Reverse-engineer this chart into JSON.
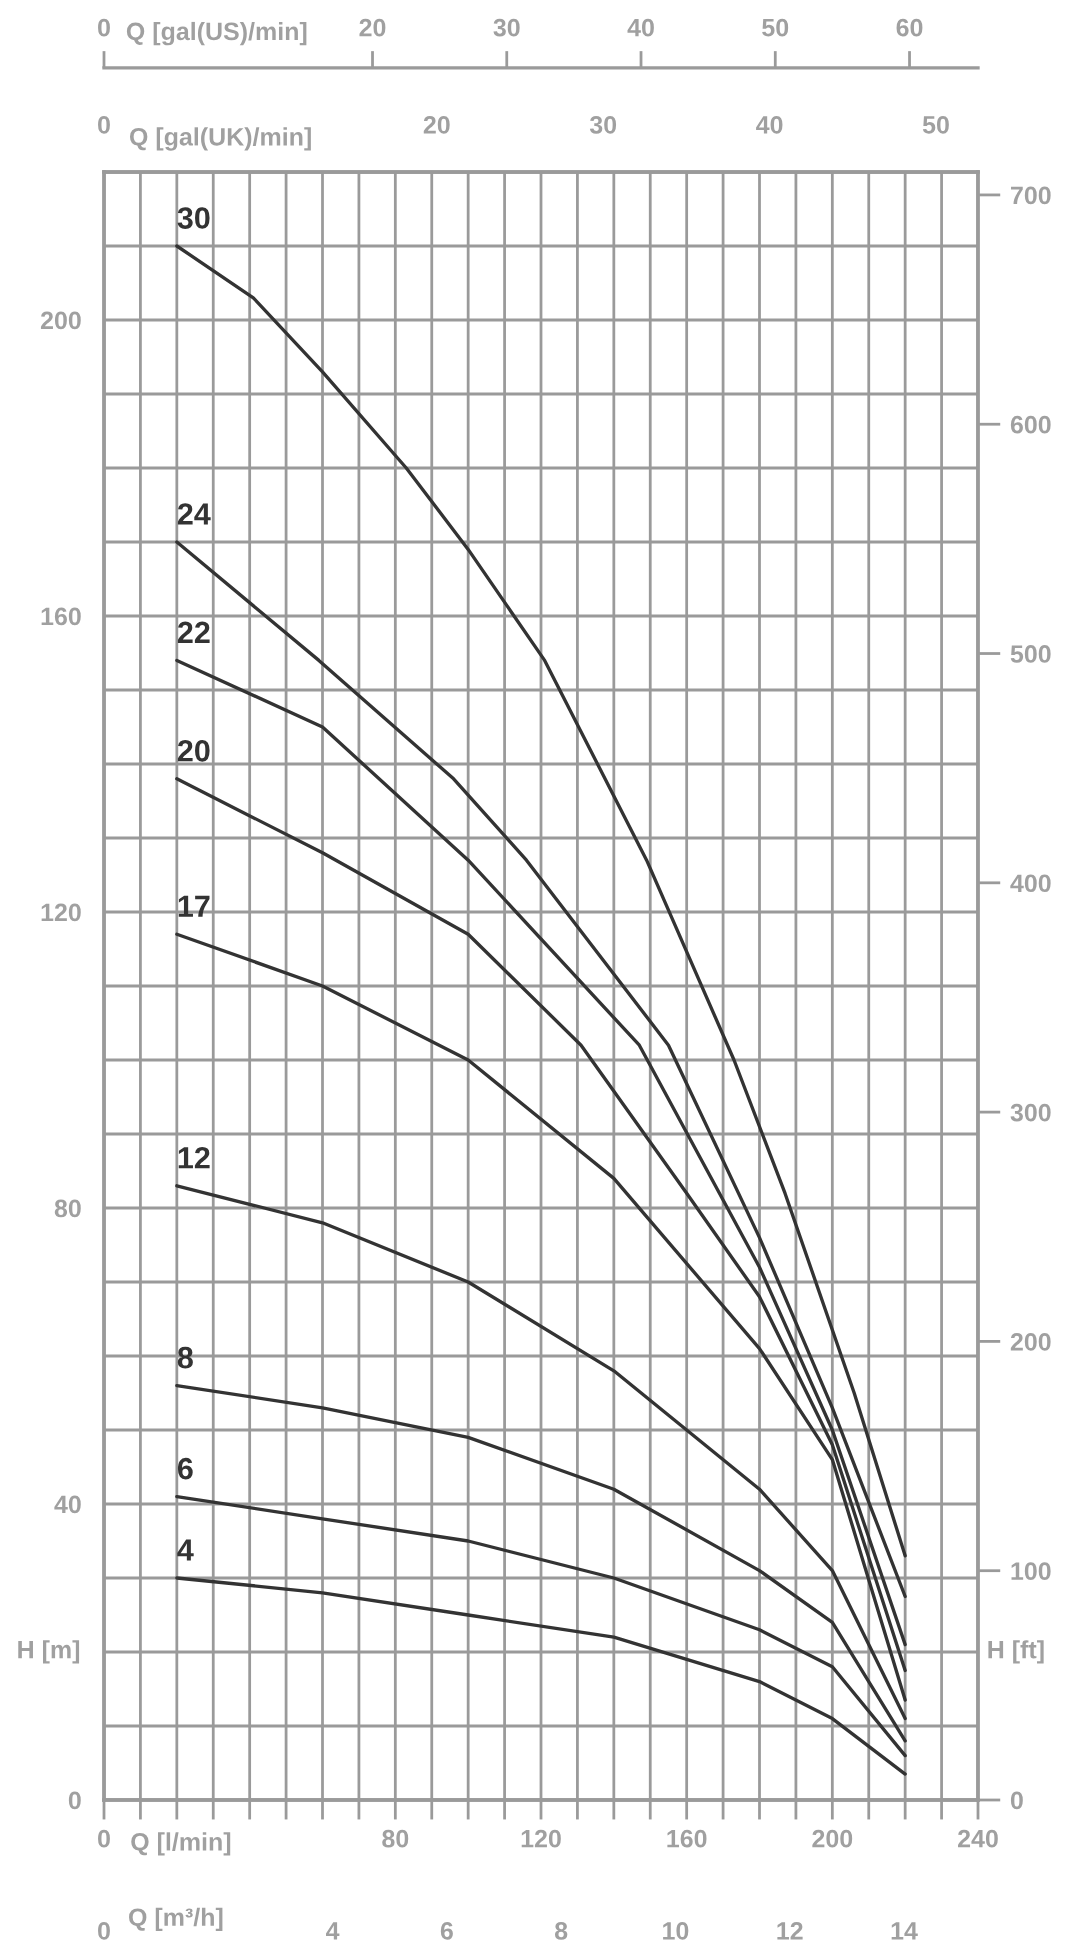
{
  "chart_data": [
    {
      "type": "other",
      "xlabel": "Q [gal(UK)/min]",
      "annotations": [
        "0",
        "20",
        "30",
        "40",
        "50"
      ]
    },
    {
      "type": "line",
      "xlabel": "Q [l/min]",
      "x2label": "Q [gal(US)/min]",
      "ylabel": "H [m]",
      "y2label": "H [ft]",
      "xlim": [
        0,
        240
      ],
      "xticks": [
        0,
        {
          "value": 10,
          "label": null
        },
        {
          "value": 20,
          "label": null
        },
        {
          "value": 30,
          "label": null
        },
        {
          "value": 40,
          "label": null
        },
        {
          "value": 50,
          "label": null
        },
        {
          "value": 60,
          "label": null
        },
        {
          "value": 70,
          "label": null
        },
        80,
        {
          "value": 90,
          "label": null
        },
        {
          "value": 100,
          "label": null
        },
        {
          "value": 110,
          "label": null
        },
        120,
        {
          "value": 130,
          "label": null
        },
        {
          "value": 140,
          "label": null
        },
        {
          "value": 150,
          "label": null
        },
        160,
        {
          "value": 170,
          "label": null
        },
        {
          "value": 180,
          "label": null
        },
        {
          "value": 190,
          "label": null
        },
        200,
        {
          "value": 210,
          "label": null
        },
        {
          "value": 220,
          "label": null
        },
        {
          "value": 230,
          "label": null
        },
        240
      ],
      "x2lim": [
        0,
        65.1
      ],
      "x2ticks": [
        0,
        20,
        30,
        40,
        50,
        60
      ],
      "ylim": [
        0,
        220
      ],
      "yticks": [
        0,
        {
          "value": 10,
          "label": null
        },
        {
          "value": 20,
          "label": null
        },
        {
          "value": 30,
          "label": null
        },
        40,
        {
          "value": 50,
          "label": null
        },
        {
          "value": 60,
          "label": null
        },
        {
          "value": 70,
          "label": null
        },
        80,
        {
          "value": 90,
          "label": null
        },
        {
          "value": 100,
          "label": null
        },
        {
          "value": 110,
          "label": null
        },
        120,
        {
          "value": 130,
          "label": null
        },
        {
          "value": 140,
          "label": null
        },
        {
          "value": 150,
          "label": null
        },
        160,
        {
          "value": 170,
          "label": null
        },
        {
          "value": 180,
          "label": null
        },
        {
          "value": 190,
          "label": null
        },
        200,
        {
          "value": 210,
          "label": null
        },
        {
          "value": 220,
          "label": null
        }
      ],
      "y2lim": [
        0,
        710
      ],
      "y2ticks": [
        0,
        100,
        200,
        300,
        400,
        500,
        600,
        700
      ],
      "grid": true,
      "legend": false,
      "line_style": "solid",
      "marker": "none",
      "series": [
        {
          "name": "30",
          "color": "#333333",
          "x": [
            20,
            41,
            60,
            83,
            100,
            121,
            149,
            173,
            187,
            206,
            220
          ],
          "values": [
            210,
            203,
            193,
            180,
            169,
            154,
            127,
            100,
            82,
            55,
            33
          ]
        },
        {
          "name": "24",
          "color": "#333333",
          "x": [
            20,
            59,
            96,
            116,
            155,
            180,
            200,
            220
          ],
          "values": [
            170,
            154,
            138,
            127,
            102,
            76,
            53,
            27.5
          ]
        },
        {
          "name": "22",
          "color": "#333333",
          "x": [
            20,
            60,
            100,
            147,
            180,
            200,
            220
          ],
          "values": [
            154,
            145,
            127,
            102,
            72,
            50,
            21
          ]
        },
        {
          "name": "20",
          "color": "#333333",
          "x": [
            20,
            60,
            100,
            131,
            160,
            180,
            200,
            220
          ],
          "values": [
            138,
            128,
            117,
            102,
            82,
            68,
            48,
            17.5
          ]
        },
        {
          "name": "17",
          "color": "#333333",
          "x": [
            20,
            60,
            100,
            140,
            180,
            200,
            220
          ],
          "values": [
            117,
            110,
            100,
            84,
            61,
            46,
            13.5
          ]
        },
        {
          "name": "12",
          "color": "#333333",
          "x": [
            20,
            60,
            100,
            140,
            180,
            200,
            220
          ],
          "values": [
            83,
            78,
            70,
            58,
            42,
            31,
            11
          ]
        },
        {
          "name": "8",
          "color": "#333333",
          "x": [
            20,
            60,
            100,
            140,
            180,
            200,
            220
          ],
          "values": [
            56,
            53,
            49,
            42,
            31,
            24,
            8
          ]
        },
        {
          "name": "6",
          "color": "#333333",
          "x": [
            20,
            60,
            100,
            140,
            180,
            200,
            220
          ],
          "values": [
            41,
            38,
            35,
            30,
            23,
            18,
            6
          ]
        },
        {
          "name": "4",
          "color": "#333333",
          "x": [
            20,
            60,
            100,
            140,
            180,
            200,
            220
          ],
          "values": [
            30,
            28,
            25,
            22,
            16,
            11,
            3.5
          ]
        }
      ]
    },
    {
      "type": "other",
      "xlabel": "Q [m³/h]",
      "annotations": [
        "0",
        "4",
        "6",
        "8",
        "10",
        "12",
        "14"
      ]
    }
  ]
}
